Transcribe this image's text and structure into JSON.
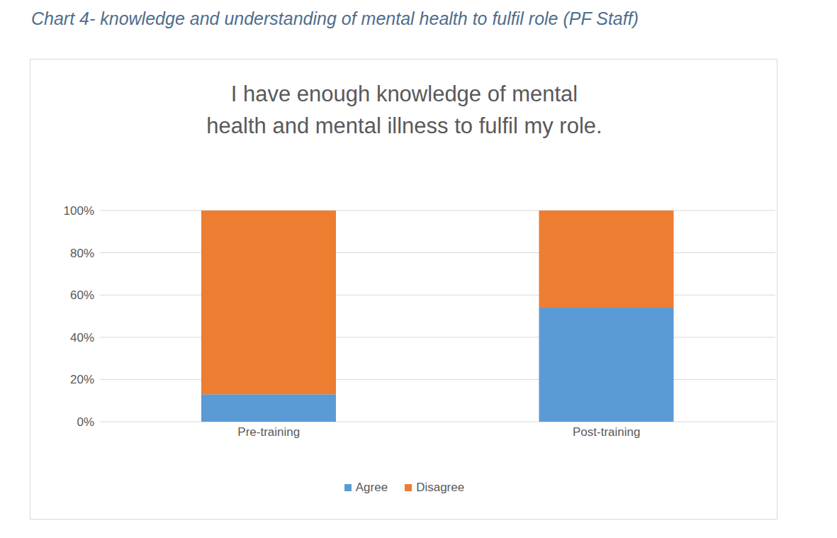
{
  "caption": "Chart 4- knowledge and understanding of mental health to fulfil role (PF Staff)",
  "chart_data": {
    "type": "bar",
    "title": "I have enough knowledge of mental health and mental illness to fulfil my role.",
    "categories": [
      "Pre-training",
      "Post-training"
    ],
    "series": [
      {
        "name": "Agree",
        "color": "#5B9BD5",
        "values": [
          13,
          54
        ]
      },
      {
        "name": "Disagree",
        "color": "#ED7D31",
        "values": [
          87,
          46
        ]
      }
    ],
    "stacked": true,
    "ylim": [
      0,
      100
    ],
    "yticks": [
      {
        "value": 0,
        "label": "0%"
      },
      {
        "value": 20,
        "label": "20%"
      },
      {
        "value": 40,
        "label": "40%"
      },
      {
        "value": 60,
        "label": "60%"
      },
      {
        "value": 80,
        "label": "80%"
      },
      {
        "value": 100,
        "label": "100%"
      }
    ],
    "grid": true,
    "legend": "bottom"
  }
}
